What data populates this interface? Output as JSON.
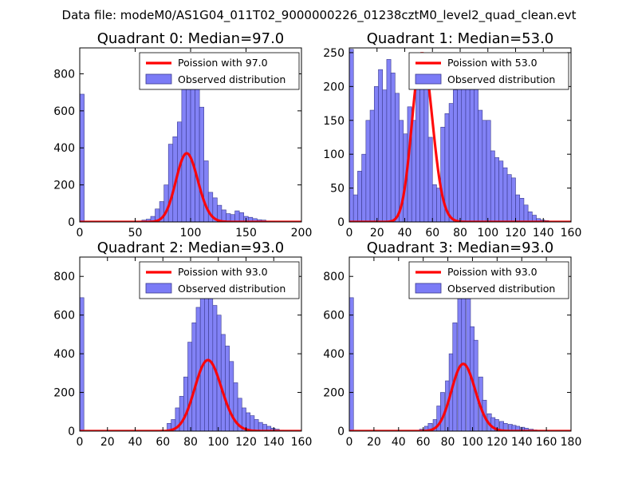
{
  "suptitle": "Data file: modeM0/AS1G04_011T02_9000000226_01238cztM0_level2_quad_clean.evt",
  "style": {
    "bar_color": "#7b7bf6",
    "bar_edge": "#3b3b8e",
    "curve_color": "#ff0000"
  },
  "chart_data": [
    {
      "type": "bar",
      "title": "Quadrant 0: Median=97.0",
      "xlim": [
        0,
        200
      ],
      "ylim": [
        0,
        940
      ],
      "xticks": [
        0,
        50,
        100,
        150,
        200
      ],
      "yticks": [
        0,
        200,
        400,
        600,
        800
      ],
      "bin_width": 4,
      "bins": [
        [
          0,
          690
        ],
        [
          56,
          10
        ],
        [
          60,
          15
        ],
        [
          64,
          30
        ],
        [
          68,
          70
        ],
        [
          72,
          110
        ],
        [
          76,
          200
        ],
        [
          80,
          420
        ],
        [
          84,
          460
        ],
        [
          88,
          540
        ],
        [
          92,
          720
        ],
        [
          96,
          820
        ],
        [
          100,
          880
        ],
        [
          104,
          790
        ],
        [
          108,
          620
        ],
        [
          112,
          330
        ],
        [
          116,
          160
        ],
        [
          120,
          130
        ],
        [
          124,
          90
        ],
        [
          128,
          65
        ],
        [
          132,
          45
        ],
        [
          136,
          40
        ],
        [
          140,
          60
        ],
        [
          144,
          50
        ],
        [
          148,
          30
        ],
        [
          152,
          25
        ],
        [
          156,
          18
        ],
        [
          160,
          12
        ],
        [
          164,
          10
        ],
        [
          168,
          5
        ],
        [
          172,
          3
        ],
        [
          176,
          2
        ],
        [
          180,
          2
        ]
      ],
      "poisson_mean": 97.0,
      "poisson_scale": 9150,
      "legend": [
        "Poission with 97.0",
        "Observed distribution"
      ],
      "legend_loc": "upper right"
    },
    {
      "type": "bar",
      "title": "Quadrant 1: Median=53.0",
      "xlim": [
        0,
        160
      ],
      "ylim": [
        0,
        257
      ],
      "xticks": [
        0,
        20,
        40,
        60,
        80,
        100,
        120,
        140,
        160
      ],
      "yticks": [
        0,
        50,
        100,
        150,
        200,
        250
      ],
      "bin_width": 3,
      "bins": [
        [
          0,
          255
        ],
        [
          3,
          40
        ],
        [
          6,
          75
        ],
        [
          9,
          100
        ],
        [
          12,
          150
        ],
        [
          15,
          165
        ],
        [
          18,
          200
        ],
        [
          21,
          225
        ],
        [
          24,
          195
        ],
        [
          27,
          240
        ],
        [
          30,
          220
        ],
        [
          33,
          190
        ],
        [
          36,
          150
        ],
        [
          39,
          130
        ],
        [
          42,
          170
        ],
        [
          45,
          150
        ],
        [
          48,
          205
        ],
        [
          51,
          230
        ],
        [
          54,
          210
        ],
        [
          57,
          125
        ],
        [
          60,
          55
        ],
        [
          63,
          50
        ],
        [
          66,
          140
        ],
        [
          69,
          160
        ],
        [
          72,
          175
        ],
        [
          75,
          195
        ],
        [
          78,
          215
        ],
        [
          81,
          225
        ],
        [
          84,
          225
        ],
        [
          87,
          220
        ],
        [
          90,
          205
        ],
        [
          93,
          165
        ],
        [
          96,
          150
        ],
        [
          99,
          150
        ],
        [
          102,
          105
        ],
        [
          105,
          95
        ],
        [
          108,
          90
        ],
        [
          111,
          80
        ],
        [
          114,
          70
        ],
        [
          117,
          65
        ],
        [
          120,
          40
        ],
        [
          123,
          35
        ],
        [
          126,
          25
        ],
        [
          129,
          15
        ],
        [
          132,
          10
        ],
        [
          135,
          5
        ],
        [
          138,
          3
        ],
        [
          141,
          2
        ]
      ],
      "poisson_mean": 53.0,
      "poisson_scale": 4550,
      "legend": [
        "Poission with 53.0",
        "Observed distribution"
      ],
      "legend_loc": "upper right"
    },
    {
      "type": "bar",
      "title": "Quadrant 2: Median=93.0",
      "xlim": [
        0,
        160
      ],
      "ylim": [
        0,
        900
      ],
      "xticks": [
        0,
        20,
        40,
        60,
        80,
        100,
        120,
        140,
        160
      ],
      "yticks": [
        0,
        200,
        400,
        600,
        800
      ],
      "bin_width": 3,
      "bins": [
        [
          0,
          690
        ],
        [
          63,
          40
        ],
        [
          66,
          60
        ],
        [
          69,
          120
        ],
        [
          72,
          180
        ],
        [
          75,
          280
        ],
        [
          78,
          460
        ],
        [
          81,
          560
        ],
        [
          84,
          640
        ],
        [
          87,
          720
        ],
        [
          90,
          830
        ],
        [
          93,
          780
        ],
        [
          96,
          650
        ],
        [
          99,
          600
        ],
        [
          102,
          500
        ],
        [
          105,
          440
        ],
        [
          108,
          360
        ],
        [
          111,
          250
        ],
        [
          114,
          170
        ],
        [
          117,
          120
        ],
        [
          120,
          95
        ],
        [
          123,
          80
        ],
        [
          126,
          60
        ],
        [
          129,
          45
        ],
        [
          132,
          35
        ],
        [
          135,
          25
        ],
        [
          138,
          15
        ],
        [
          141,
          10
        ],
        [
          144,
          5
        ],
        [
          147,
          3
        ],
        [
          150,
          2
        ]
      ],
      "poisson_mean": 93.0,
      "poisson_scale": 8880,
      "legend": [
        "Poission with 93.0",
        "Observed distribution"
      ],
      "legend_loc": "upper right"
    },
    {
      "type": "bar",
      "title": "Quadrant 3: Median=93.0",
      "xlim": [
        0,
        180
      ],
      "ylim": [
        0,
        900
      ],
      "xticks": [
        0,
        20,
        40,
        60,
        80,
        100,
        120,
        140,
        160,
        180
      ],
      "yticks": [
        0,
        200,
        400,
        600,
        800
      ],
      "bin_width": 3.4,
      "bins": [
        [
          0,
          690
        ],
        [
          57,
          10
        ],
        [
          61,
          25
        ],
        [
          64,
          40
        ],
        [
          68,
          60
        ],
        [
          71,
          130
        ],
        [
          74,
          200
        ],
        [
          78,
          260
        ],
        [
          81,
          400
        ],
        [
          84,
          560
        ],
        [
          88,
          690
        ],
        [
          91,
          740
        ],
        [
          95,
          770
        ],
        [
          98,
          540
        ],
        [
          101,
          470
        ],
        [
          105,
          280
        ],
        [
          108,
          160
        ],
        [
          112,
          90
        ],
        [
          115,
          70
        ],
        [
          118,
          60
        ],
        [
          122,
          50
        ],
        [
          125,
          40
        ],
        [
          129,
          35
        ],
        [
          132,
          30
        ],
        [
          135,
          25
        ],
        [
          139,
          20
        ],
        [
          142,
          15
        ],
        [
          146,
          10
        ],
        [
          149,
          6
        ],
        [
          152,
          4
        ],
        [
          156,
          3
        ],
        [
          159,
          2
        ]
      ],
      "poisson_mean": 93.0,
      "poisson_scale": 8400,
      "legend": [
        "Poission with 93.0",
        "Observed distribution"
      ],
      "legend_loc": "upper right"
    }
  ]
}
